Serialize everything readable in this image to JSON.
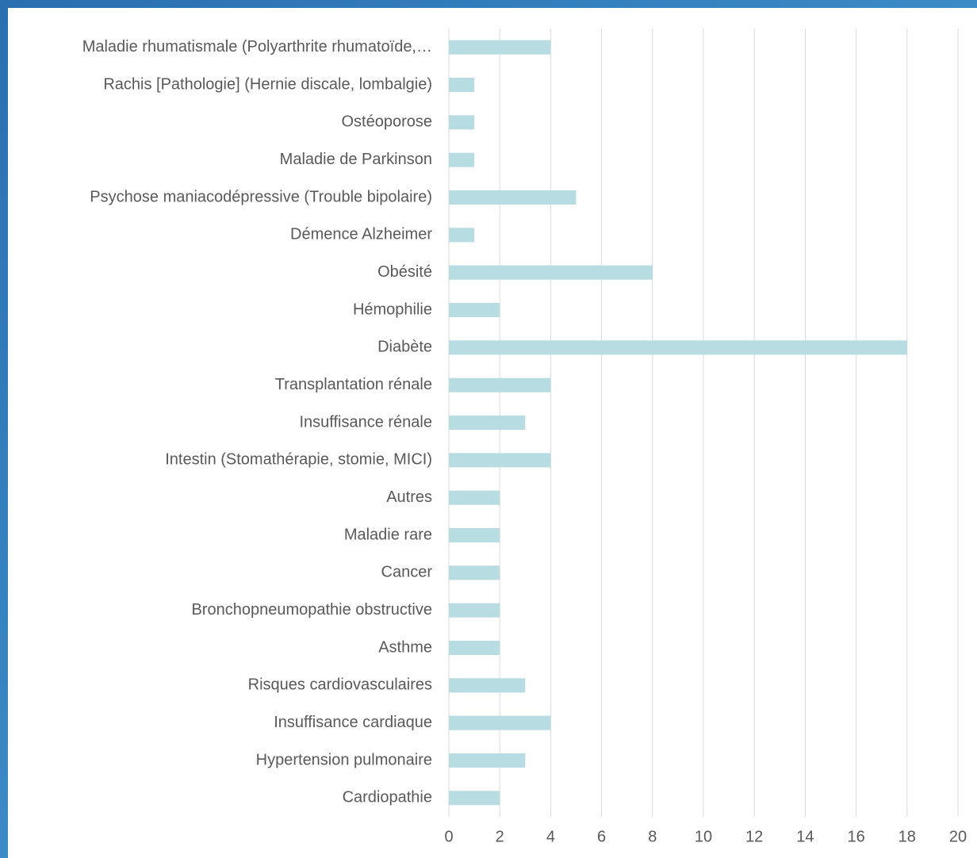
{
  "chart_data": {
    "type": "bar",
    "orientation": "horizontal",
    "categories": [
      "Maladie rhumatismale (Polyarthrite rhumatoïde,…",
      "Rachis [Pathologie] (Hernie discale, lombalgie)",
      "Ostéoporose",
      "Maladie de Parkinson",
      "Psychose maniacodépressive (Trouble bipolaire)",
      "Démence Alzheimer",
      "Obésité",
      "Hémophilie",
      "Diabète",
      "Transplantation rénale",
      "Insuffisance rénale",
      "Intestin (Stomathérapie, stomie, MICI)",
      "Autres",
      "Maladie rare",
      "Cancer",
      "Bronchopneumopathie obstructive",
      "Asthme",
      "Risques cardiovasculaires",
      "Insuffisance cardiaque",
      "Hypertension pulmonaire",
      "Cardiopathie"
    ],
    "values": [
      4,
      1,
      1,
      1,
      5,
      1,
      8,
      2,
      18,
      4,
      3,
      4,
      2,
      2,
      2,
      2,
      2,
      3,
      4,
      3,
      2
    ],
    "color": "#b7dde2",
    "xlim": [
      0,
      20
    ],
    "xticks": [
      0,
      2,
      4,
      6,
      8,
      10,
      12,
      14,
      16,
      18,
      20
    ],
    "grid": true
  }
}
